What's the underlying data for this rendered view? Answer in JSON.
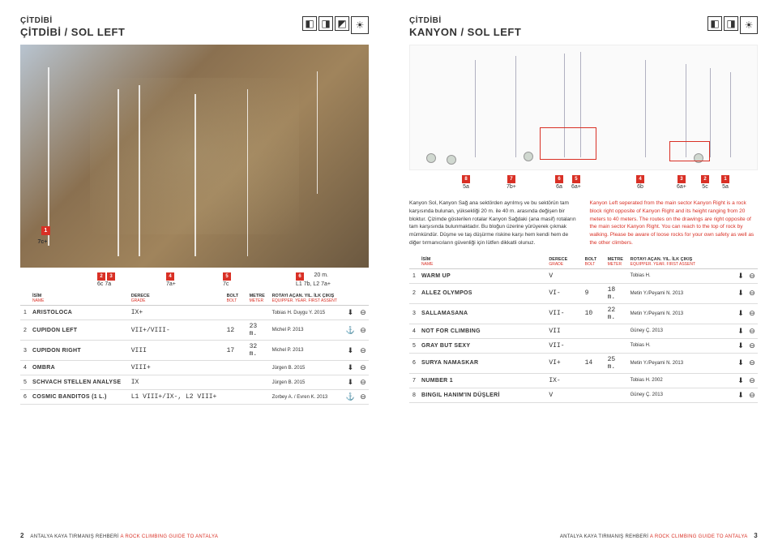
{
  "left": {
    "siteName": "ÇİTDİBİ",
    "sectorName": "ÇİTDİBİ / SOL LEFT",
    "photoLabels": {
      "topLeft": {
        "num": "1",
        "grade": "7c+"
      },
      "bottom": [
        {
          "num": "2",
          "grade": "6c"
        },
        {
          "num": "3",
          "grade": "7a"
        },
        {
          "num": "4",
          "grade": "7a+"
        },
        {
          "num": "5",
          "grade": "7c"
        },
        {
          "num": "6",
          "grade": "L1 7b, L2 7a+"
        }
      ],
      "note": "20 m."
    },
    "tableHeaders": {
      "name": "İSİM",
      "nameSub": "NAME",
      "grade": "DERECE",
      "gradeSub": "GRADE",
      "bolt": "BOLT",
      "boltSub": "BOLT",
      "meter": "METRE",
      "meterSub": "METER",
      "eq": "ROTAYI AÇAN. YIL. İLK ÇIKIŞ",
      "eqSub": "EQUIPPER. YEAR. FIRST ASSENT"
    },
    "routes": [
      {
        "n": "1",
        "name": "ARISTOLOCA",
        "grade": "IX+",
        "bolt": "",
        "meter": "",
        "eq": "Tobias H. Duygu Y. 2015",
        "s1": "⬇",
        "s2": "⊖"
      },
      {
        "n": "2",
        "name": "CUPIDON LEFT",
        "grade": "VII+/VIII-",
        "bolt": "12",
        "meter": "23 m.",
        "eq": "Michel P. 2013",
        "s1": "⚓",
        "s2": "⊖"
      },
      {
        "n": "3",
        "name": "CUPIDON RIGHT",
        "grade": "VIII",
        "bolt": "17",
        "meter": "32 m.",
        "eq": "Michel P. 2013",
        "s1": "⬇",
        "s2": "⊖"
      },
      {
        "n": "4",
        "name": "OMBRA",
        "grade": "VIII+",
        "bolt": "",
        "meter": "",
        "eq": "Jürgen B. 2015",
        "s1": "⬇",
        "s2": "⊖"
      },
      {
        "n": "5",
        "name": "SCHVACH STELLEN ANALYSE",
        "grade": "IX",
        "bolt": "",
        "meter": "",
        "eq": "Jürgen B. 2015",
        "s1": "⬇",
        "s2": "⊖"
      },
      {
        "n": "6",
        "name": "COSMIC BANDITOS (1 L.)",
        "grade": "L1 VIII+/IX-, L2 VIII+",
        "bolt": "",
        "meter": "",
        "eq": "Zorbey A. / Evren K. 2013",
        "s1": "⚓",
        "s2": "⊖"
      }
    ],
    "footer": {
      "pn": "2",
      "text": "ANTALYA KAYA TIRMANIŞ REHBERİ",
      "red": "A ROCK CLIMBING GUIDE TO ANTALYA"
    }
  },
  "right": {
    "siteName": "ÇİTDİBİ",
    "sectorName": "KANYON / SOL LEFT",
    "gradeRow": [
      {
        "n": "8",
        "g": "5a"
      },
      {
        "n": "7",
        "g": "7b+"
      },
      {
        "n": "6",
        "g": "6a"
      },
      {
        "n": "5",
        "g": "6a+"
      },
      {
        "n": "4",
        "g": "6b"
      },
      {
        "n": "3",
        "g": "6a+"
      },
      {
        "n": "2",
        "g": "5c"
      },
      {
        "n": "1",
        "g": "5a"
      }
    ],
    "descTR": "Kanyon Sol, Kanyon Sağ ana sektörden ayrılmış ve bu sektörün tam karşısında bulunan, yüksekliği 20 m. ile 40 m. arasında değişen bir bloktur. Çizimde gösterilen rotalar Kanyon Sağdaki (ana masif) rotaların tam karşısında bulunmaktadır. Bu bloğun üzerine yürüyerek çıkmak mümkündür. Düşme ve taş düşürme riskine karşı hem kendi hem de diğer tırmanıcıların güvenliği için lütfen dikkatli olunuz.",
    "descEN": "Kanyon Left seperated from the main sector Kanyon Right is a rock block right opposite of Kanyon Right and its height ranging from 20 meters to 40 meters. The routes on the drawings are right opposite of the main sector Kanyon Right. You can reach to the top of rock by walking. Please be aware of loose rocks for your own safety as well as the other climbers.",
    "tableHeaders": {
      "name": "İSİM",
      "nameSub": "NAME",
      "grade": "DERECE",
      "gradeSub": "GRADE",
      "bolt": "BOLT",
      "boltSub": "BOLT",
      "meter": "METRE",
      "meterSub": "METER",
      "eq": "ROTAYI AÇAN. YIL. İLK ÇIKIŞ",
      "eqSub": "EQUIPPER. YEAR. FIRST ASSENT"
    },
    "routes": [
      {
        "n": "1",
        "name": "WARM UP",
        "grade": "V",
        "bolt": "",
        "meter": "",
        "eq": "Tobias H.",
        "s1": "⬇",
        "s2": "⊖"
      },
      {
        "n": "2",
        "name": "ALLEZ OLYMPOS",
        "grade": "VI-",
        "bolt": "9",
        "meter": "18 m.",
        "eq": "Metin Y./Peyami N. 2013",
        "s1": "⬇",
        "s2": "⊖"
      },
      {
        "n": "3",
        "name": "SALLAMASANA",
        "grade": "VII-",
        "bolt": "10",
        "meter": "22 m.",
        "eq": "Metin Y./Peyami N. 2013",
        "s1": "⬇",
        "s2": "⊖"
      },
      {
        "n": "4",
        "name": "NOT FOR CLIMBING",
        "grade": "VII",
        "bolt": "",
        "meter": "",
        "eq": "Güney Ç. 2013",
        "s1": "⬇",
        "s2": "⊖"
      },
      {
        "n": "5",
        "name": "GRAY BUT SEXY",
        "grade": "VII-",
        "bolt": "",
        "meter": "",
        "eq": "Tobias H.",
        "s1": "⬇",
        "s2": "⊖"
      },
      {
        "n": "6",
        "name": "SURYA NAMASKAR",
        "grade": "VI+",
        "bolt": "14",
        "meter": "25 m.",
        "eq": "Metin Y./Peyami N. 2013",
        "s1": "⬇",
        "s2": "⊖"
      },
      {
        "n": "7",
        "name": "NUMBER 1",
        "grade": "IX-",
        "bolt": "",
        "meter": "",
        "eq": "Tobias H. 2002",
        "s1": "⬇",
        "s2": "⊖"
      },
      {
        "n": "8",
        "name": "BINGIL HANIM'IN DÜŞLERİ",
        "grade": "V",
        "bolt": "",
        "meter": "",
        "eq": "Güney Ç. 2013",
        "s1": "⬇",
        "s2": "⊖"
      }
    ],
    "footer": {
      "text": "ANTALYA KAYA TIRMANIŞ REHBERİ",
      "red": "A ROCK CLIMBING GUIDE TO ANTALYA",
      "pn": "3"
    }
  }
}
